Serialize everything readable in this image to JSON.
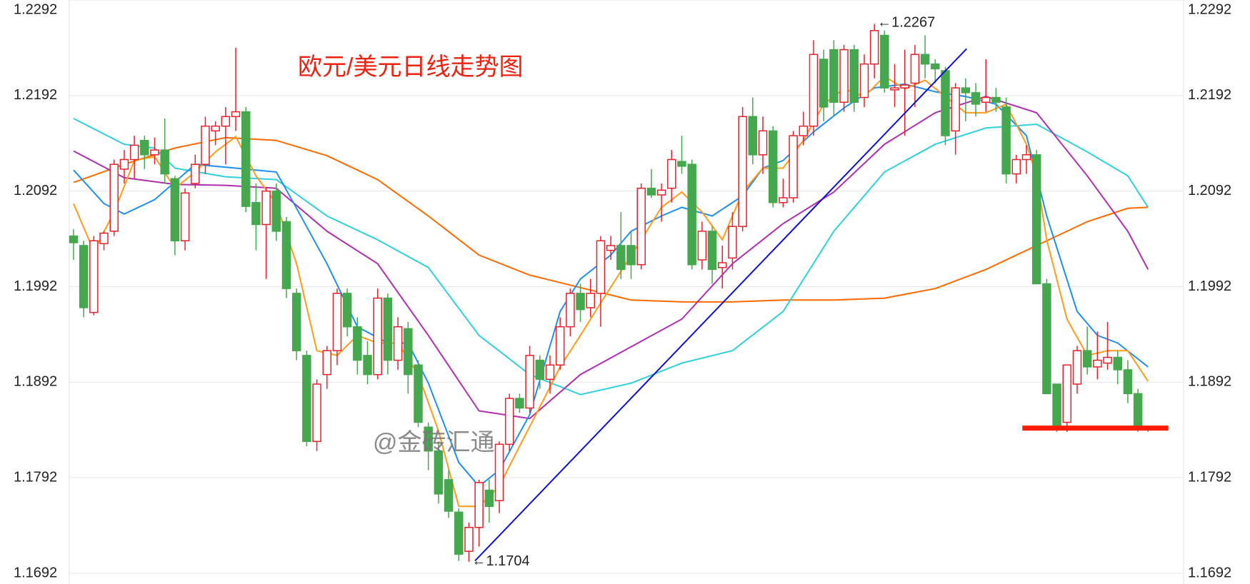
{
  "chart_data": {
    "type": "candlestick",
    "title": "欧元/美元日线走势图",
    "watermark": "@金砖汇通",
    "up_color": "#e8212b",
    "down_color": "#46a84e",
    "grid": true,
    "ylim": [
      1.1692,
      1.2292
    ],
    "yticks": [
      1.1692,
      1.1792,
      1.1892,
      1.1992,
      1.2092,
      1.2192,
      1.2292
    ],
    "xlim": [
      -0.42,
      109.5
    ],
    "open": [
      1.2045,
      1.2035,
      1.1965,
      1.2037,
      1.205,
      1.2115,
      1.2125,
      1.2145,
      1.213,
      1.2135,
      1.2105,
      1.204,
      1.21,
      1.212,
      1.2155,
      1.216,
      1.217,
      1.2175,
      1.208,
      1.2057,
      1.2092,
      1.206,
      1.1985,
      1.192,
      1.183,
      1.19,
      1.1925,
      1.1985,
      1.195,
      1.192,
      1.19,
      1.198,
      1.1915,
      1.1948,
      1.191,
      1.1845,
      1.182,
      1.179,
      1.1756,
      1.1715,
      1.174,
      1.1779,
      1.1768,
      1.1827,
      1.1875,
      1.1865,
      1.1915,
      1.1895,
      1.191,
      1.195,
      1.1985,
      1.197,
      1.1985,
      1.203,
      1.2035,
      1.2035,
      1.2015,
      1.2095,
      1.2088,
      1.2095,
      1.2123,
      1.212,
      1.202,
      1.205,
      1.2012,
      1.2022,
      1.2055,
      1.217,
      1.213,
      1.2155,
      1.208,
      1.2085,
      1.215,
      1.216,
      1.223,
      1.224,
      1.2185,
      1.224,
      1.219,
      1.2225,
      1.2255,
      1.2198,
      1.22,
      1.2205,
      1.2235,
      1.2225,
      1.2218,
      1.2155,
      1.22,
      1.2195,
      1.2185,
      1.219,
      1.218,
      1.211,
      1.2125,
      1.213,
      1.1995,
      1.189,
      1.185,
      1.189,
      1.1925,
      1.1908,
      1.1912,
      1.1918,
      1.1905,
      1.188,
      1.1843
    ],
    "high": [
      1.2052,
      1.204,
      1.2045,
      1.205,
      1.2125,
      1.2135,
      1.215,
      1.215,
      1.2148,
      1.2168,
      1.2108,
      1.2095,
      1.213,
      1.217,
      1.2165,
      1.218,
      1.2242,
      1.218,
      1.21,
      1.2095,
      1.21,
      1.2065,
      1.199,
      1.1925,
      1.1895,
      1.193,
      1.199,
      1.199,
      1.196,
      1.1935,
      1.199,
      1.1985,
      1.196,
      1.1955,
      1.1915,
      1.185,
      1.183,
      1.18,
      1.176,
      1.1745,
      1.179,
      1.179,
      1.183,
      1.188,
      1.188,
      1.193,
      1.192,
      1.192,
      1.196,
      1.199,
      1.1995,
      1.2,
      1.2045,
      1.2045,
      1.207,
      1.205,
      1.21,
      1.2115,
      1.21,
      1.2135,
      1.215,
      1.2125,
      1.206,
      1.2055,
      1.2035,
      1.207,
      1.218,
      1.219,
      1.217,
      1.216,
      1.2105,
      1.2155,
      1.2175,
      1.225,
      1.224,
      1.225,
      1.2245,
      1.2245,
      1.2235,
      1.2267,
      1.226,
      1.2225,
      1.224,
      1.2245,
      1.2255,
      1.223,
      1.2222,
      1.2205,
      1.221,
      1.2205,
      1.223,
      1.22,
      1.219,
      1.213,
      1.214,
      1.2135,
      1.2,
      1.189,
      1.191,
      1.193,
      1.195,
      1.1945,
      1.1955,
      1.1925,
      1.1915,
      1.1885,
      1.1845
    ],
    "low": [
      1.202,
      1.196,
      1.1962,
      1.203,
      1.2045,
      1.21,
      1.2105,
      1.2115,
      1.212,
      1.21,
      1.2025,
      1.203,
      1.2095,
      1.211,
      1.214,
      1.212,
      1.2155,
      1.207,
      1.203,
      1.2,
      1.204,
      1.198,
      1.1915,
      1.1825,
      1.182,
      1.1885,
      1.191,
      1.194,
      1.19,
      1.189,
      1.1895,
      1.19,
      1.1905,
      1.188,
      1.1845,
      1.18,
      1.1765,
      1.175,
      1.1705,
      1.1704,
      1.172,
      1.1745,
      1.1755,
      1.182,
      1.186,
      1.186,
      1.1885,
      1.188,
      1.1905,
      1.194,
      1.1955,
      1.196,
      1.195,
      1.202,
      1.2,
      1.2,
      1.201,
      1.2085,
      1.206,
      1.208,
      1.211,
      1.201,
      1.201,
      1.1995,
      1.199,
      1.201,
      1.205,
      1.212,
      1.211,
      1.2075,
      1.2075,
      1.208,
      1.214,
      1.215,
      1.2165,
      1.217,
      1.2175,
      1.2175,
      1.218,
      1.221,
      1.2195,
      1.218,
      1.215,
      1.218,
      1.221,
      1.2205,
      1.214,
      1.213,
      1.2165,
      1.217,
      1.2175,
      1.2175,
      1.21,
      1.21,
      1.211,
      1.1995,
      1.188,
      1.184,
      1.184,
      1.188,
      1.19,
      1.1895,
      1.1905,
      1.189,
      1.187,
      1.184,
      1.184
    ],
    "close": [
      1.2038,
      1.197,
      1.204,
      1.2048,
      1.212,
      1.2125,
      1.214,
      1.213,
      1.2135,
      1.211,
      1.204,
      1.209,
      1.212,
      1.216,
      1.216,
      1.217,
      1.2175,
      1.2076,
      1.2057,
      1.2092,
      1.205,
      1.199,
      1.1925,
      1.183,
      1.189,
      1.1925,
      1.1985,
      1.195,
      1.1915,
      1.19,
      1.198,
      1.1915,
      1.195,
      1.19,
      1.185,
      1.182,
      1.1775,
      1.1757,
      1.1712,
      1.174,
      1.1787,
      1.1762,
      1.1827,
      1.1875,
      1.1865,
      1.192,
      1.1895,
      1.191,
      1.195,
      1.1985,
      1.1968,
      1.1985,
      1.204,
      1.2035,
      1.201,
      1.2015,
      1.2095,
      1.2088,
      1.2093,
      1.2125,
      1.2118,
      1.2015,
      1.205,
      1.201,
      1.2017,
      1.2055,
      1.217,
      1.213,
      1.2155,
      1.208,
      1.2085,
      1.215,
      1.216,
      1.2235,
      1.218,
      1.2185,
      1.224,
      1.2185,
      1.2225,
      1.226,
      1.22,
      1.22,
      1.2203,
      1.2235,
      1.2225,
      1.222,
      1.215,
      1.22,
      1.2195,
      1.2183,
      1.219,
      1.2185,
      1.211,
      1.2125,
      1.213,
      1.1995,
      1.188,
      1.1845,
      1.191,
      1.1925,
      1.1908,
      1.1915,
      1.1918,
      1.1905,
      1.188,
      1.1842,
      1.1842
    ],
    "lines": [
      {
        "color": "#ff6a00",
        "x": [
          0,
          5,
          10,
          15,
          20,
          25,
          30,
          35,
          40,
          45,
          50,
          55,
          60,
          65,
          70,
          75,
          80,
          85,
          90,
          95,
          100,
          104,
          106
        ],
        "values": [
          1.2101,
          1.212,
          1.2137,
          1.2148,
          1.2145,
          1.2129,
          1.2104,
          1.2066,
          1.2025,
          1.2004,
          1.1991,
          1.1978,
          1.1976,
          1.1976,
          1.1978,
          1.1978,
          1.198,
          1.199,
          1.201,
          1.2035,
          1.206,
          1.2074,
          1.2075
        ]
      },
      {
        "color": "#2fd0dd",
        "x": [
          0,
          5,
          8,
          10,
          15,
          20,
          25,
          30,
          35,
          40,
          45,
          50,
          55,
          60,
          65,
          70,
          75,
          80,
          85,
          90,
          95,
          100,
          104,
          106
        ],
        "values": [
          1.2168,
          1.2141,
          1.2137,
          1.2116,
          1.2107,
          1.2104,
          1.2066,
          1.2041,
          1.2012,
          1.1941,
          1.19,
          1.1879,
          1.1891,
          1.1912,
          1.1925,
          1.1966,
          1.205,
          1.2112,
          1.2141,
          1.2158,
          1.2162,
          1.2133,
          1.2108,
          1.2075
        ]
      },
      {
        "color": "#b02eb0",
        "x": [
          0,
          5,
          10,
          15,
          20,
          25,
          30,
          35,
          40,
          45,
          50,
          55,
          60,
          65,
          70,
          75,
          80,
          85,
          90,
          95,
          100,
          104,
          106
        ],
        "values": [
          1.2134,
          1.2106,
          1.2099,
          1.2098,
          1.2095,
          1.205,
          1.2016,
          1.1941,
          1.1862,
          1.1854,
          1.19,
          1.1929,
          1.1958,
          1.2016,
          1.2058,
          1.2091,
          1.2141,
          1.2174,
          1.2191,
          1.2174,
          1.2108,
          1.205,
          1.201
        ]
      },
      {
        "color": "#1e8ff0",
        "x": [
          0,
          3,
          5,
          8,
          12,
          16,
          20,
          22,
          25,
          28,
          31,
          33,
          35,
          38,
          40,
          42,
          45,
          48,
          50,
          53,
          55,
          58,
          60,
          63,
          66,
          68,
          70,
          73,
          76,
          79,
          82,
          85,
          88,
          91,
          94,
          96,
          99,
          101,
          103,
          106
        ],
        "values": [
          1.2114,
          1.2079,
          1.2068,
          1.2083,
          1.212,
          1.2116,
          1.2112,
          1.2074,
          1.2016,
          1.195,
          1.1933,
          1.1933,
          1.1891,
          1.1808,
          1.1783,
          1.18,
          1.1858,
          1.1966,
          1.2,
          1.2025,
          1.205,
          1.2066,
          1.2075,
          1.2066,
          1.2087,
          1.2116,
          1.2124,
          1.2154,
          1.2179,
          1.22,
          1.2204,
          1.2196,
          1.2191,
          1.2183,
          1.215,
          1.2066,
          1.1966,
          1.1941,
          1.1933,
          1.1908
        ]
      },
      {
        "color": "#ff9a1a",
        "x": [
          0,
          2,
          4,
          6,
          8,
          10,
          12,
          14,
          16,
          18,
          20,
          22,
          24,
          26,
          28,
          30,
          32,
          34,
          36,
          38,
          40,
          42,
          44,
          46,
          48,
          50,
          52,
          54,
          56,
          58,
          60,
          62,
          64,
          66,
          68,
          70,
          72,
          74,
          76,
          78,
          80,
          82,
          84,
          86,
          88,
          90,
          92,
          94,
          95,
          96,
          98,
          100,
          102,
          104,
          106
        ],
        "values": [
          1.2079,
          1.2029,
          1.207,
          1.2124,
          1.2128,
          1.2095,
          1.2112,
          1.2133,
          1.2149,
          1.2108,
          1.2079,
          1.2016,
          1.1925,
          1.192,
          1.1941,
          1.1933,
          1.1933,
          1.19,
          1.1841,
          1.1762,
          1.1762,
          1.1783,
          1.1825,
          1.1866,
          1.1908,
          1.1941,
          1.1975,
          1.2008,
          1.2041,
          1.2075,
          1.2091,
          1.207,
          1.2041,
          1.2091,
          1.2116,
          1.2116,
          1.2145,
          1.2183,
          1.2199,
          1.2191,
          1.2212,
          1.2199,
          1.2208,
          1.2191,
          1.2174,
          1.2174,
          1.2183,
          1.2141,
          1.2108,
          1.2041,
          1.1958,
          1.192,
          1.1925,
          1.1925,
          1.1893
        ]
      }
    ],
    "trendlines": [
      {
        "color": "#1010d0",
        "width": 2,
        "x": [
          39.6,
          88.1
        ],
        "y": [
          1.1705,
          1.2241
        ]
      },
      {
        "color": "#ff1a00",
        "width": 7,
        "x": [
          93.6,
          108
        ],
        "y": [
          1.1844,
          1.1844
        ]
      }
    ],
    "annotations": [
      {
        "text": "←1.2267",
        "x": 79,
        "y": 1.2267
      },
      {
        "text": "←1.1704",
        "x": 39,
        "y": 1.1704
      }
    ]
  }
}
